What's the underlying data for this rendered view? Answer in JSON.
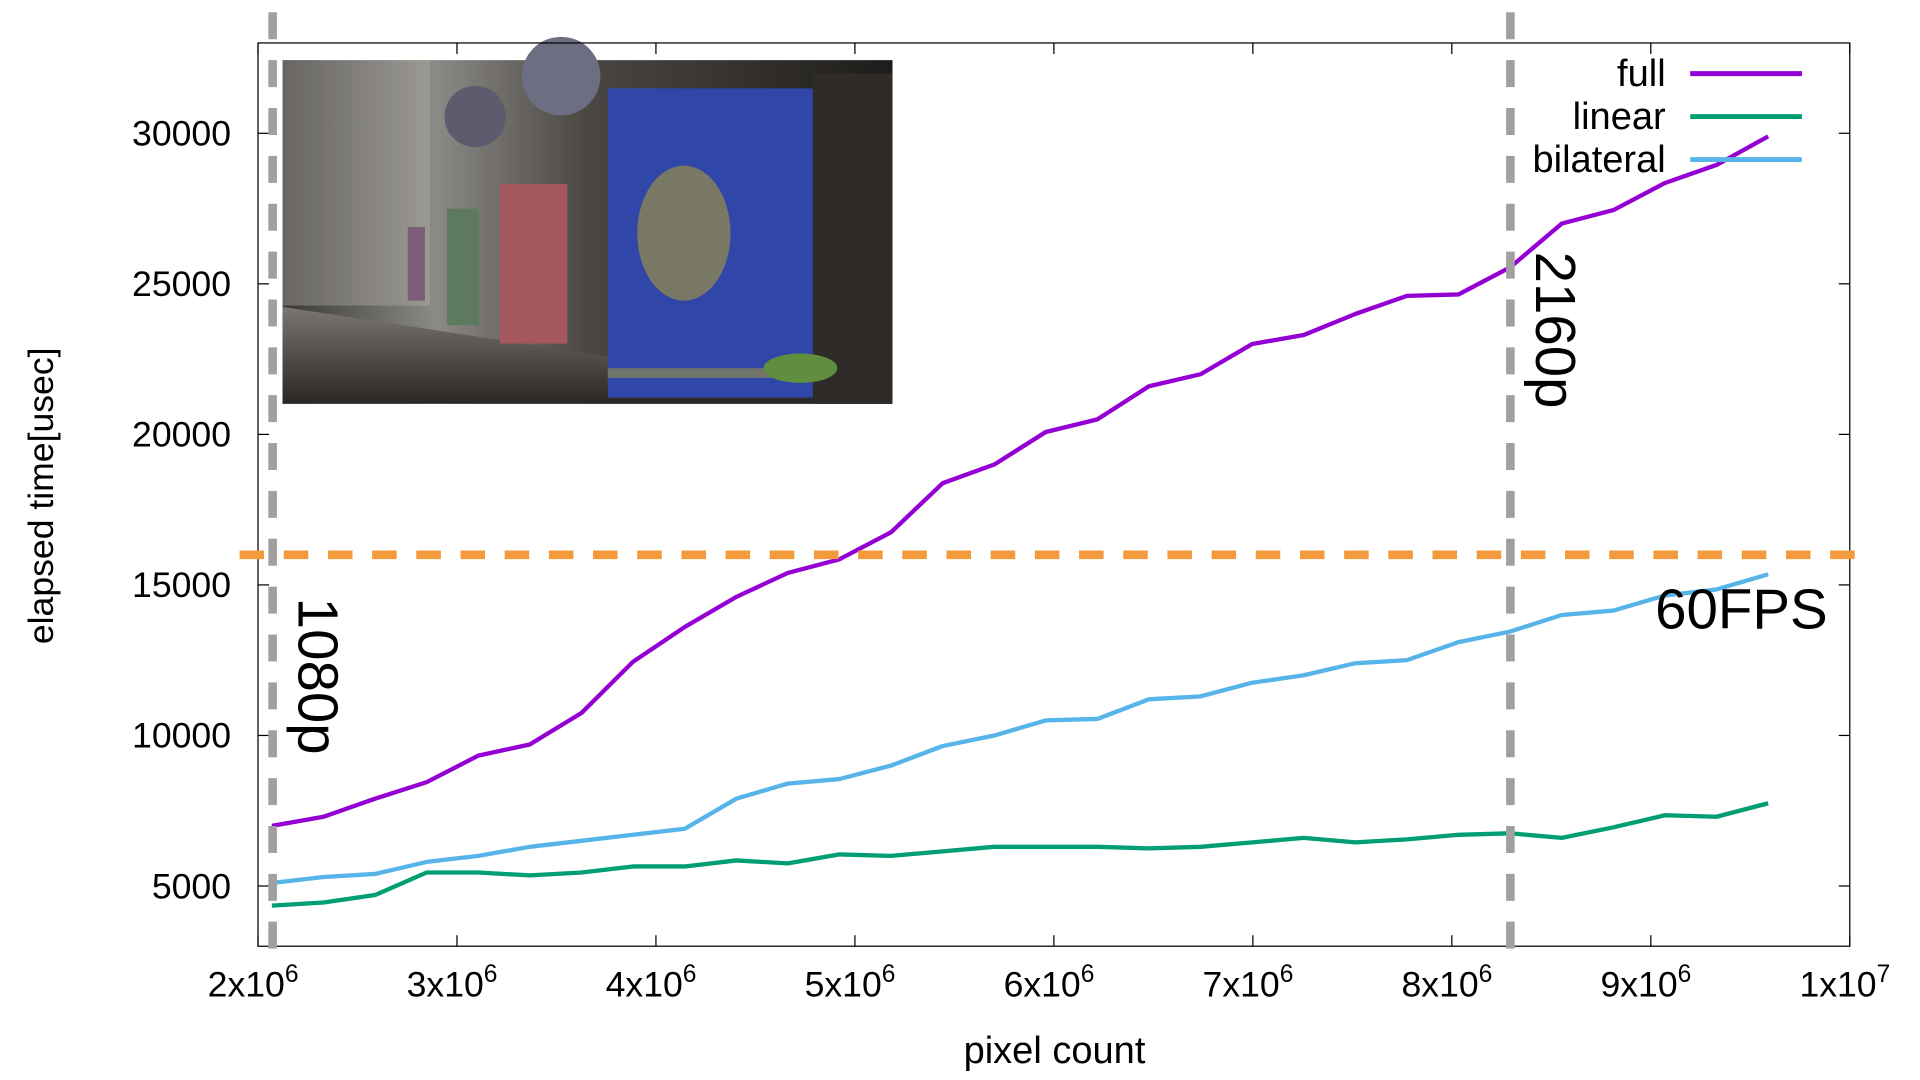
{
  "chart_data": {
    "type": "line",
    "title": "",
    "xlabel": "pixel count",
    "ylabel": "elapsed time[usec]",
    "xlim": [
      2000000,
      10000000
    ],
    "ylim": [
      3000,
      33000
    ],
    "x_ticks": [
      {
        "value": 2000000,
        "base": "2x10",
        "exp": "6"
      },
      {
        "value": 3000000,
        "base": "3x10",
        "exp": "6"
      },
      {
        "value": 4000000,
        "base": "4x10",
        "exp": "6"
      },
      {
        "value": 5000000,
        "base": "5x10",
        "exp": "6"
      },
      {
        "value": 6000000,
        "base": "6x10",
        "exp": "6"
      },
      {
        "value": 7000000,
        "base": "7x10",
        "exp": "6"
      },
      {
        "value": 8000000,
        "base": "8x10",
        "exp": "6"
      },
      {
        "value": 9000000,
        "base": "9x10",
        "exp": "6"
      },
      {
        "value": 10000000,
        "base": "1x10",
        "exp": "7"
      }
    ],
    "y_ticks": [
      5000,
      10000,
      15000,
      20000,
      25000,
      30000
    ],
    "legend_position": "top-right",
    "x_start": 2070000,
    "x_step": 259300,
    "series": [
      {
        "name": "full",
        "color": "#9400d3",
        "values": [
          7000,
          7300,
          7900,
          8450,
          9330,
          9700,
          10750,
          12450,
          13600,
          14600,
          15400,
          15850,
          16750,
          18380,
          19000,
          20080,
          20500,
          21600,
          22000,
          23000,
          23300,
          24000,
          24600,
          24650,
          25550,
          27000,
          27450,
          28350,
          28950,
          29900
        ]
      },
      {
        "name": "linear",
        "color": "#009e73",
        "values": [
          4350,
          4450,
          4700,
          5450,
          5450,
          5350,
          5450,
          5650,
          5650,
          5850,
          5750,
          6050,
          6000,
          6150,
          6300,
          6300,
          6300,
          6250,
          6300,
          6450,
          6600,
          6450,
          6550,
          6700,
          6750,
          6600,
          6950,
          7350,
          7300,
          7750
        ]
      },
      {
        "name": "bilateral",
        "color": "#56b4e9",
        "values": [
          5100,
          5300,
          5400,
          5800,
          6000,
          6300,
          6500,
          6700,
          6900,
          7900,
          8400,
          8550,
          9000,
          9650,
          10000,
          10500,
          10550,
          11200,
          11300,
          11750,
          12000,
          12400,
          12500,
          13100,
          13450,
          14000,
          14150,
          14650,
          14850,
          15350
        ]
      }
    ],
    "annotations": {
      "vlines": [
        {
          "label": "1080p",
          "x": 2073600,
          "color": "#a0a0a0"
        },
        {
          "label": "2160p",
          "x": 8294400,
          "color": "#a0a0a0"
        }
      ],
      "hline": {
        "label": "60FPS",
        "y": 16000,
        "color": "#f39a3c"
      }
    }
  }
}
